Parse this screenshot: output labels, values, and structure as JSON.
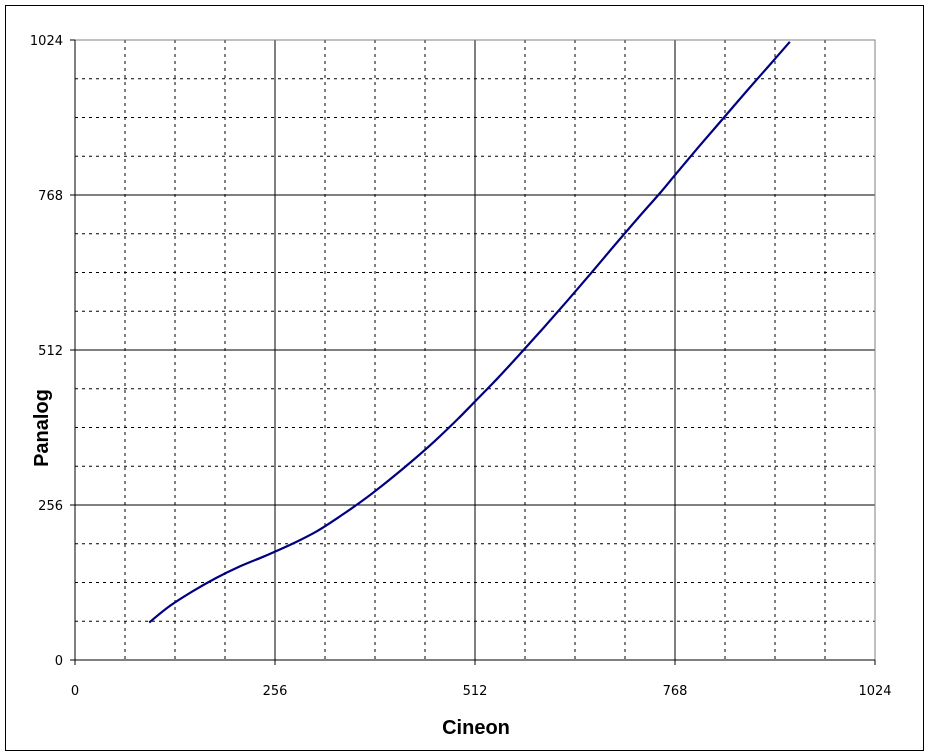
{
  "chart_data": {
    "type": "line",
    "xlabel": "Cineon",
    "ylabel": "Panalog",
    "xlim": [
      0,
      1024
    ],
    "ylim": [
      0,
      1024
    ],
    "x_ticks": [
      0,
      256,
      512,
      768,
      1024
    ],
    "y_ticks": [
      0,
      256,
      512,
      768,
      1024
    ],
    "grid": {
      "major": true,
      "minor": true,
      "minor_step": 64,
      "plot_area_border": true
    },
    "series": [
      {
        "color": "#000080",
        "x": [
          95,
          120,
          150,
          180,
          210,
          240,
          256,
          280,
          310,
          340,
          370,
          400,
          430,
          460,
          490,
          512,
          540,
          570,
          600,
          630,
          660,
          690,
          720,
          750,
          768,
          800,
          830,
          860,
          890,
          915
        ],
        "y": [
          62,
          88,
          113,
          135,
          154,
          170,
          179,
          193,
          213,
          238,
          265,
          295,
          327,
          361,
          398,
          427,
          464,
          506,
          549,
          593,
          638,
          684,
          729,
          773,
          801,
          850,
          895,
          940,
          984,
          1021
        ]
      }
    ]
  }
}
